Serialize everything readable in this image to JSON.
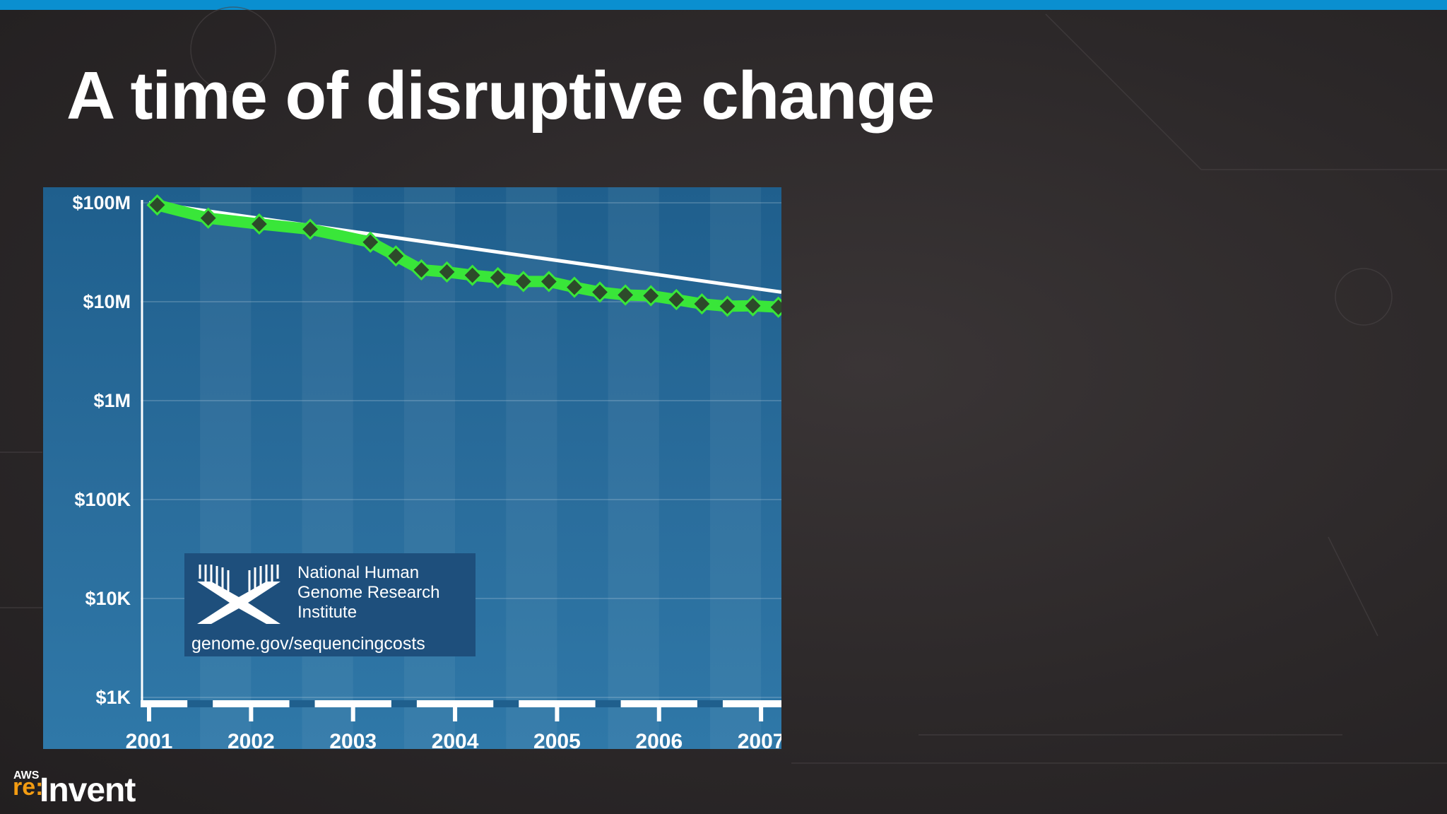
{
  "slide": {
    "title": "A time of disruptive change",
    "accent_color": "#0a8fd0"
  },
  "chart_data": {
    "type": "line",
    "y_scale": "log",
    "ylim": [
      1000,
      100000000
    ],
    "xlim": [
      2001,
      2007.2
    ],
    "y_ticks": [
      {
        "value": 100000000,
        "label": "$100M"
      },
      {
        "value": 10000000,
        "label": "$10M"
      },
      {
        "value": 1000000,
        "label": "$1M"
      },
      {
        "value": 100000,
        "label": "$100K"
      },
      {
        "value": 10000,
        "label": "$10K"
      },
      {
        "value": 1000,
        "label": "$1K"
      }
    ],
    "x_ticks": [
      {
        "value": 2001,
        "label": "2001"
      },
      {
        "value": 2002,
        "label": "2002"
      },
      {
        "value": 2003,
        "label": "2003"
      },
      {
        "value": 2004,
        "label": "2004"
      },
      {
        "value": 2005,
        "label": "2005"
      },
      {
        "value": 2006,
        "label": "2006"
      },
      {
        "value": 2007,
        "label": "2007"
      }
    ],
    "series": [
      {
        "role": "reference-trend",
        "color": "#ffffff",
        "x": [
          2001,
          2007.2
        ],
        "y": [
          100000000,
          12500000
        ]
      },
      {
        "role": "cost",
        "color": "#39e639",
        "marker_color": "#2d4a2a",
        "x": [
          2001.08,
          2001.58,
          2002.08,
          2002.58,
          2003.17,
          2003.42,
          2003.67,
          2003.92,
          2004.17,
          2004.42,
          2004.67,
          2004.92,
          2005.17,
          2005.42,
          2005.67,
          2005.92,
          2006.17,
          2006.42,
          2006.67,
          2006.92,
          2007.17
        ],
        "y": [
          95000000,
          70000000,
          61000000,
          54000000,
          40000000,
          29000000,
          21000000,
          20000000,
          18500000,
          17500000,
          16000000,
          16000000,
          14000000,
          12500000,
          11700000,
          11500000,
          10500000,
          9500000,
          9000000,
          9100000,
          8800000
        ]
      }
    ]
  },
  "source_logo": {
    "org_lines": [
      "National Human",
      "Genome Research",
      "Institute"
    ],
    "url": "genome.gov/sequencingcosts"
  },
  "brand": {
    "aws": "AWS",
    "re": "re:",
    "invent": "Invent",
    "accent_color": "#f39c12"
  }
}
